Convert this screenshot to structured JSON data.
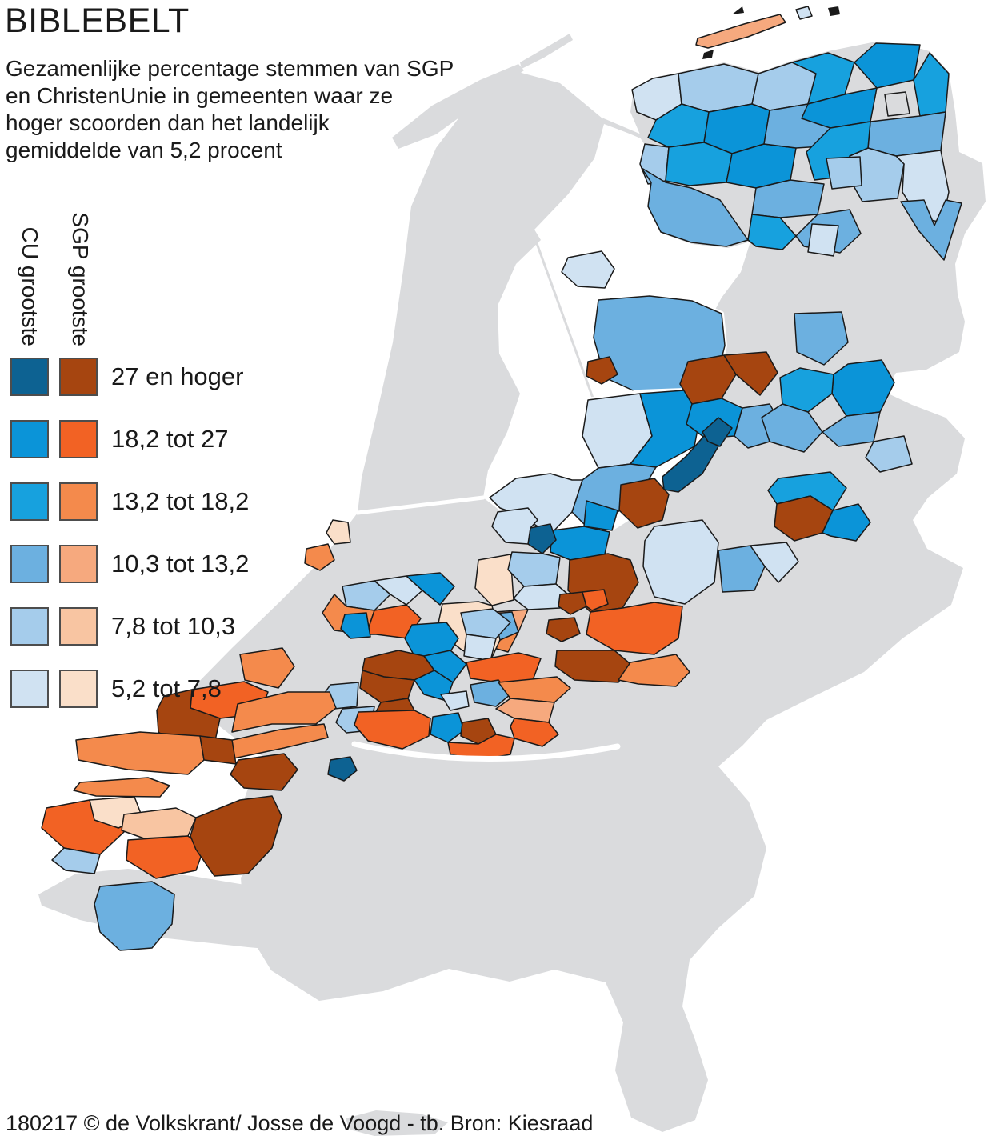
{
  "title": "BIBLEBELT",
  "subtitle_lines": [
    "Gezamenlijke percentage stemmen van SGP",
    "en ChristenUnie in gemeenten waar ze",
    "hoger scoorden dan het landelijk",
    "gemiddelde van 5,2 procent"
  ],
  "legend": {
    "columns": [
      {
        "label": "CU grootste"
      },
      {
        "label": "SGP grootste"
      }
    ],
    "rows": [
      {
        "label": "27 en hoger",
        "cu": "#0d6292",
        "sgp": "#a64510"
      },
      {
        "label": "18,2 tot 27",
        "cu": "#0b94d8",
        "sgp": "#f26224"
      },
      {
        "label": "13,2 tot 18,2",
        "cu": "#17a1de",
        "sgp": "#f48a4c"
      },
      {
        "label": "10,3 tot 13,2",
        "cu": "#6cb0e0",
        "sgp": "#f6a97e"
      },
      {
        "label": "7,8 tot 10,3",
        "cu": "#a5cceb",
        "sgp": "#f8c5a2"
      },
      {
        "label": "5,2 tot 7,8",
        "cu": "#d0e2f2",
        "sgp": "#fadfc9"
      }
    ]
  },
  "map": {
    "land_color": "#dadbdd",
    "sea_color": "#ffffff",
    "border_color": "#1a1a1a",
    "national_average_pct": "5,2"
  },
  "footer": "180217 © de Volkskrant/ Josse de Voogd - tb. Bron: Kiesraad"
}
